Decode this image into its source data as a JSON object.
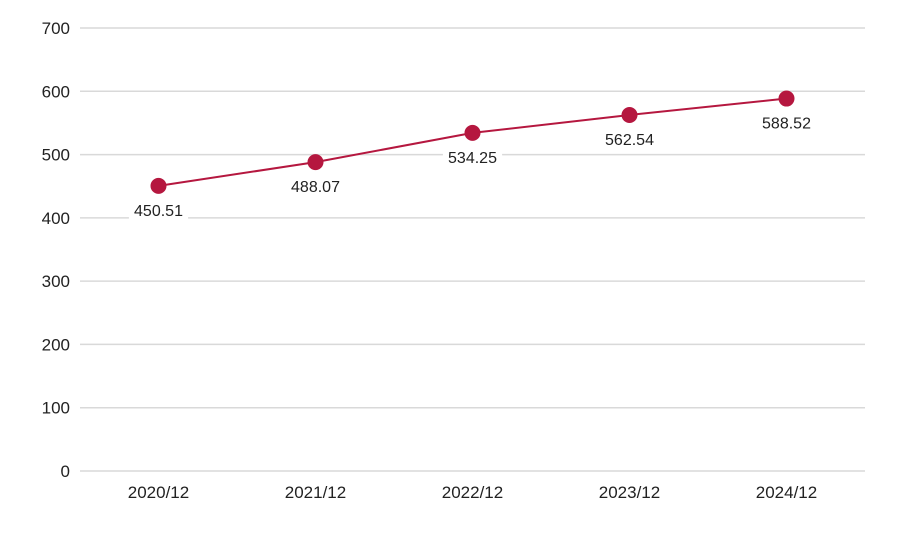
{
  "chart_data": {
    "type": "line",
    "title": "",
    "xlabel": "",
    "ylabel": "",
    "categories": [
      "2020/12",
      "2021/12",
      "2022/12",
      "2023/12",
      "2024/12"
    ],
    "series": [
      {
        "values": [
          450.51,
          488.07,
          534.25,
          562.54,
          588.52
        ]
      }
    ],
    "data_labels": [
      "450.51",
      "488.07",
      "534.25",
      "562.54",
      "588.52"
    ],
    "ylim": [
      0,
      700
    ],
    "yticks": [
      0,
      100,
      200,
      300,
      400,
      500,
      600,
      700
    ],
    "ytick_labels": [
      "0",
      "100",
      "200",
      "300",
      "400",
      "500",
      "600",
      "700"
    ],
    "grid": true,
    "legend": "none",
    "colors": {
      "series": "#b5173f",
      "grid": "#d9d9d9",
      "text": "#222222"
    }
  }
}
